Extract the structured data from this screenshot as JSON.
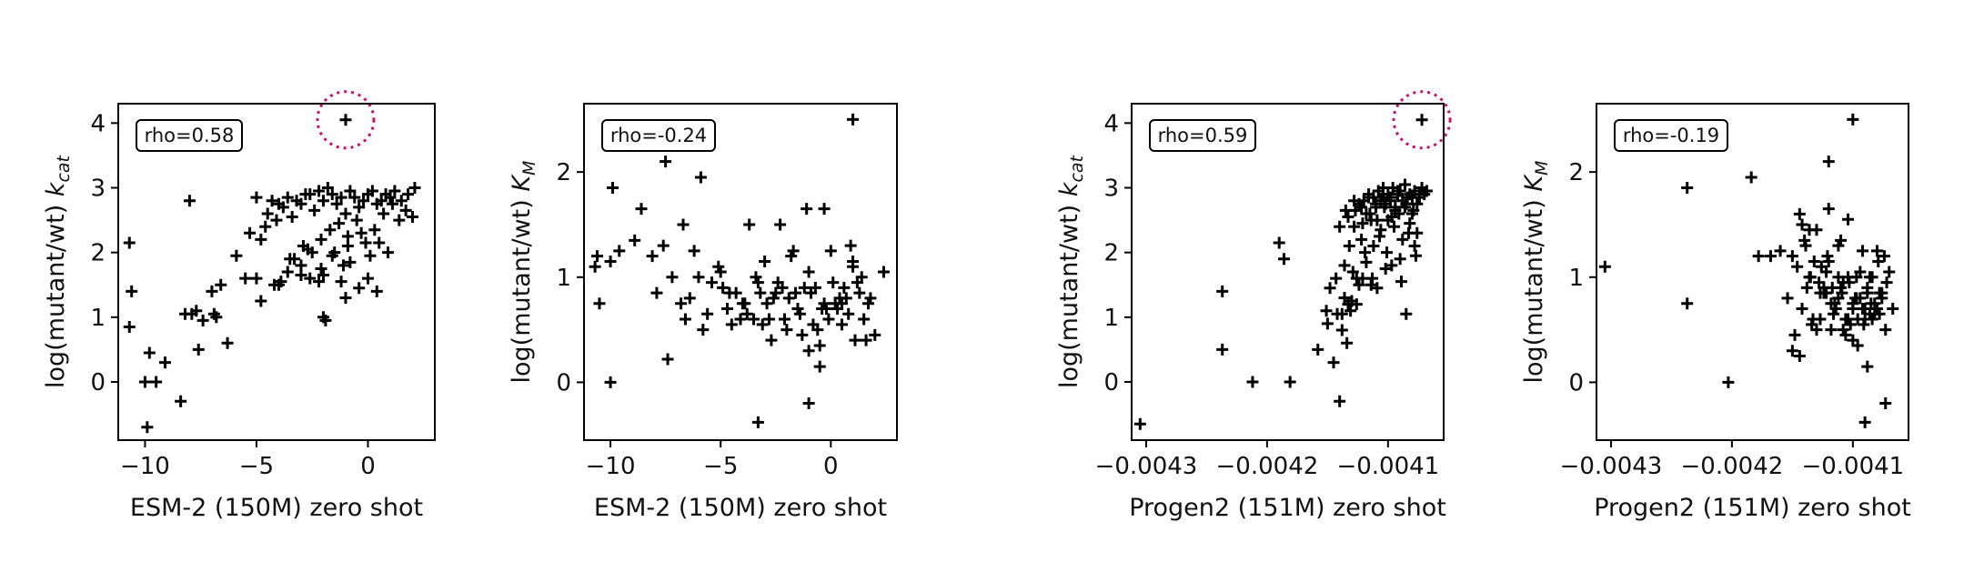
{
  "chart_data": [
    {
      "type": "scatter",
      "xlabel": "ESM-2 (150M) zero shot",
      "ylabel": "log(mutant/wt) ",
      "ylabel_sub": "cat",
      "ylabel_var": "k",
      "annotation": "rho=0.58",
      "xlim": [
        -11.2,
        3.0
      ],
      "ylim": [
        -0.9,
        4.3
      ],
      "xticks": [
        -10,
        -5,
        0
      ],
      "xtick_labels": [
        "−10",
        "−5",
        "0"
      ],
      "yticks": [
        0,
        1,
        2,
        3,
        4
      ],
      "ytick_labels": [
        "0",
        "1",
        "2",
        "3",
        "4"
      ],
      "highlight": {
        "x": -1.0,
        "y": 4.05
      },
      "marker_color": "#000000",
      "highlight_color": "#c8106e",
      "points": {
        "x": [
          -10.7,
          -10.6,
          -10.7,
          -10.0,
          -9.8,
          -9.9,
          -9.5,
          -9.1,
          -8.4,
          -8.0,
          -7.9,
          -7.7,
          -7.4,
          -7.0,
          -6.8,
          -6.6,
          -6.3,
          -5.9,
          -5.5,
          -5.3,
          -5.0,
          -4.8,
          -4.6,
          -4.5,
          -4.3,
          -4.1,
          -4.0,
          -3.8,
          -3.6,
          -3.4,
          -3.2,
          -3.0,
          -2.8,
          -2.6,
          -2.4,
          -2.2,
          -2.0,
          -1.8,
          -1.6,
          -1.4,
          -1.2,
          -1.0,
          -0.8,
          -0.6,
          -0.4,
          -0.2,
          0.0,
          0.2,
          0.4,
          0.6,
          0.8,
          1.0,
          1.2,
          1.5,
          1.8,
          2.1,
          -2.9,
          -2.5,
          -2.1,
          -1.7,
          -1.3,
          -0.9,
          -0.5,
          -0.1,
          0.3,
          0.7,
          1.1,
          1.4,
          1.7,
          2.0,
          -4.8,
          -4.2,
          -3.6,
          -3.0,
          -2.6,
          -2.0,
          -1.6,
          -1.2,
          -0.8,
          -0.4,
          -3.9,
          -3.3,
          -2.7,
          -2.1,
          -1.5,
          -0.9,
          -0.3,
          0.1,
          0.5,
          0.9,
          -5.0,
          -4.0,
          -3.0,
          -2.0,
          -1.0,
          0.0,
          -6.9,
          -7.6,
          -8.2,
          -3.5,
          -1.9,
          0.4,
          -2.2,
          -1.1
        ],
        "y": [
          2.15,
          1.4,
          0.85,
          0.0,
          0.45,
          -0.7,
          0.0,
          0.3,
          -0.3,
          2.8,
          1.05,
          1.1,
          0.95,
          1.4,
          1.0,
          1.5,
          0.6,
          1.95,
          1.6,
          2.3,
          2.85,
          2.2,
          2.4,
          2.6,
          2.8,
          2.5,
          2.75,
          2.7,
          2.85,
          2.55,
          2.8,
          2.75,
          2.9,
          2.9,
          2.65,
          2.95,
          2.8,
          3.0,
          2.9,
          2.75,
          2.85,
          2.6,
          2.95,
          2.85,
          2.7,
          2.8,
          2.9,
          2.95,
          2.75,
          2.8,
          2.9,
          2.85,
          2.95,
          2.8,
          2.9,
          3.0,
          2.1,
          2.0,
          2.2,
          2.35,
          2.45,
          2.25,
          2.5,
          2.15,
          2.35,
          2.6,
          2.75,
          2.5,
          2.65,
          2.55,
          1.25,
          1.5,
          1.7,
          1.8,
          1.6,
          1.65,
          1.95,
          1.55,
          1.85,
          1.45,
          1.55,
          1.9,
          2.05,
          1.75,
          2.0,
          2.1,
          2.3,
          1.95,
          2.15,
          2.0,
          1.6,
          1.5,
          1.65,
          1.0,
          1.3,
          1.6,
          1.05,
          0.5,
          1.05,
          1.9,
          0.95,
          1.4,
          1.55,
          1.8
        ]
      }
    },
    {
      "type": "scatter",
      "xlabel": "ESM-2 (150M) zero shot",
      "ylabel": "log(mutant/wt) ",
      "ylabel_sub": "M",
      "ylabel_var": "K",
      "annotation": "rho=-0.24",
      "xlim": [
        -11.2,
        3.0
      ],
      "ylim": [
        -0.55,
        2.65
      ],
      "xticks": [
        -10,
        -5,
        0
      ],
      "xtick_labels": [
        "−10",
        "−5",
        "0"
      ],
      "yticks": [
        0,
        1,
        2
      ],
      "ytick_labels": [
        "0",
        "1",
        "2"
      ],
      "marker_color": "#000000",
      "points": {
        "x": [
          -10.7,
          -10.6,
          -10.5,
          -10.0,
          -9.9,
          -9.6,
          -8.9,
          -8.6,
          -8.1,
          -7.9,
          -7.6,
          -7.4,
          -7.2,
          -6.8,
          -6.6,
          -6.4,
          -6.2,
          -6.0,
          -5.6,
          -5.4,
          -5.1,
          -4.9,
          -4.7,
          -4.5,
          -4.3,
          -4.1,
          -3.9,
          -3.7,
          -3.5,
          -3.3,
          -3.1,
          -2.9,
          -2.7,
          -2.5,
          -2.3,
          -2.1,
          -1.9,
          -1.7,
          -1.5,
          -1.3,
          -1.1,
          -0.9,
          -0.7,
          -0.5,
          -0.3,
          -0.1,
          0.1,
          0.3,
          0.5,
          0.7,
          0.9,
          1.1,
          1.3,
          1.5,
          1.7,
          2.0,
          2.4,
          -3.0,
          -2.6,
          -2.2,
          -1.8,
          -1.4,
          -1.0,
          -0.6,
          -0.2,
          0.2,
          0.6,
          1.0,
          1.4,
          1.8,
          -4.6,
          -4.0,
          -3.4,
          -2.8,
          -2.4,
          -2.0,
          -1.6,
          -1.2,
          -0.8,
          -0.4,
          0.0,
          0.4,
          0.8,
          1.2,
          1.6,
          -6.7,
          -5.8,
          -5.0,
          -3.8,
          -3.2,
          -1.0,
          1.0,
          -0.5,
          0.5,
          -3.3,
          -1.0,
          -5.9,
          -7.5,
          -10.0,
          -0.3
        ],
        "y": [
          1.1,
          1.2,
          0.75,
          1.15,
          1.85,
          1.25,
          1.35,
          1.65,
          1.2,
          0.85,
          1.3,
          0.22,
          1.0,
          0.75,
          0.6,
          0.8,
          1.25,
          1.0,
          0.65,
          0.95,
          1.1,
          0.9,
          0.7,
          0.55,
          0.85,
          0.6,
          0.75,
          1.5,
          0.6,
          0.95,
          0.55,
          0.75,
          0.4,
          0.85,
          1.5,
          0.6,
          0.8,
          1.25,
          0.7,
          0.45,
          1.65,
          0.85,
          0.9,
          0.35,
          0.75,
          0.6,
          0.95,
          0.7,
          0.55,
          0.8,
          1.3,
          0.4,
          0.85,
          0.6,
          0.75,
          0.45,
          1.05,
          1.15,
          0.8,
          0.9,
          1.2,
          0.65,
          1.05,
          0.5,
          0.7,
          0.75,
          0.9,
          1.15,
          1.0,
          0.8,
          0.85,
          0.75,
          1.0,
          0.6,
          0.95,
          0.5,
          0.85,
          0.9,
          0.55,
          0.7,
          1.25,
          0.8,
          0.65,
          0.95,
          0.4,
          1.5,
          0.5,
          1.05,
          0.65,
          0.85,
          0.3,
          1.1,
          0.15,
          0.75,
          -0.38,
          -0.2,
          1.95,
          2.1,
          0.0,
          1.65
        ],
        "extra": {
          "x": 1.0,
          "y": 2.5
        }
      }
    },
    {
      "type": "scatter",
      "xlabel": "Progen2 (151M) zero shot",
      "ylabel": "log(mutant/wt) ",
      "ylabel_sub": "cat",
      "ylabel_var": "k",
      "annotation": "rho=0.59",
      "xlim": [
        -0.004312,
        -0.004054
      ],
      "ylim": [
        -0.9,
        4.3
      ],
      "xticks": [
        -0.0043,
        -0.0042,
        -0.0041
      ],
      "xtick_labels": [
        "−0.0043",
        "−0.0042",
        "−0.0041"
      ],
      "yticks": [
        0,
        1,
        2,
        3,
        4
      ],
      "ytick_labels": [
        "0",
        "1",
        "2",
        "3",
        "4"
      ],
      "highlight": {
        "x": -0.004072,
        "y": 4.05
      },
      "marker_color": "#000000",
      "highlight_color": "#c8106e",
      "points": {
        "x": [
          -0.004305,
          -0.004237,
          -0.004237,
          -0.004212,
          -0.00419,
          -0.004186,
          -0.004181,
          -0.004158,
          -0.004151,
          -0.00415,
          -0.004148,
          -0.004145,
          -0.004143,
          -0.00414,
          -0.004138,
          -0.004136,
          -0.004134,
          -0.004132,
          -0.00413,
          -0.004128,
          -0.004126,
          -0.004124,
          -0.004122,
          -0.00412,
          -0.004118,
          -0.004116,
          -0.004114,
          -0.004112,
          -0.00411,
          -0.004108,
          -0.004106,
          -0.004104,
          -0.004102,
          -0.0041,
          -0.004098,
          -0.004096,
          -0.004094,
          -0.004092,
          -0.00409,
          -0.004088,
          -0.004086,
          -0.004084,
          -0.004082,
          -0.00408,
          -0.004078,
          -0.004076,
          -0.004074,
          -0.004072,
          -0.00407,
          -0.004068,
          -0.004135,
          -0.004128,
          -0.004122,
          -0.004116,
          -0.00411,
          -0.004104,
          -0.004098,
          -0.004092,
          -0.004086,
          -0.00408,
          -0.004074,
          -0.004131,
          -0.004124,
          -0.004118,
          -0.004112,
          -0.004106,
          -0.0041,
          -0.004094,
          -0.004088,
          -0.004082,
          -0.004076,
          -0.004142,
          -0.004136,
          -0.004129,
          -0.004119,
          -0.004113,
          -0.004107,
          -0.004101,
          -0.004095,
          -0.004089,
          -0.004083,
          -0.004077,
          -0.00414,
          -0.004133,
          -0.004127,
          -0.004121,
          -0.004115,
          -0.004109,
          -0.004103,
          -0.004097,
          -0.004091,
          -0.004085,
          -0.004079,
          -0.004138,
          -0.004126,
          -0.004114,
          -0.004102,
          -0.00409,
          -0.004078,
          -0.004133,
          -0.004121,
          -0.004109,
          -0.004097,
          -0.004085
        ],
        "y": [
          -0.65,
          1.4,
          0.5,
          0.0,
          2.15,
          1.9,
          0.0,
          0.5,
          1.1,
          0.9,
          1.45,
          0.3,
          1.6,
          -0.3,
          1.05,
          1.8,
          0.6,
          2.1,
          1.25,
          2.4,
          1.6,
          2.75,
          2.2,
          2.8,
          2.6,
          2.9,
          2.5,
          2.85,
          2.7,
          2.95,
          2.8,
          3.0,
          2.75,
          2.9,
          2.85,
          3.0,
          2.7,
          2.9,
          2.95,
          2.8,
          3.05,
          2.85,
          2.9,
          2.6,
          2.95,
          2.75,
          2.85,
          3.0,
          2.9,
          2.95,
          2.65,
          2.8,
          2.7,
          2.85,
          2.75,
          2.9,
          2.8,
          2.95,
          2.7,
          2.85,
          2.9,
          1.1,
          1.5,
          1.85,
          2.1,
          2.35,
          2.5,
          2.65,
          2.2,
          2.45,
          2.3,
          1.05,
          1.3,
          1.7,
          2.0,
          1.6,
          2.25,
          2.0,
          2.4,
          1.55,
          2.3,
          1.95,
          2.4,
          2.55,
          2.65,
          2.45,
          2.6,
          2.5,
          2.7,
          2.55,
          2.6,
          2.75,
          2.65,
          0.8,
          1.2,
          1.5,
          1.75,
          1.9,
          2.1,
          1.2,
          1.6,
          1.45,
          1.8,
          1.05
        ]
      }
    },
    {
      "type": "scatter",
      "xlabel": "Progen2 (151M) zero shot",
      "ylabel": "log(mutant/wt) ",
      "ylabel_sub": "M",
      "ylabel_var": "K",
      "annotation": "rho=-0.19",
      "xlim": [
        -0.004312,
        -0.004054
      ],
      "ylim": [
        -0.55,
        2.65
      ],
      "xticks": [
        -0.0043,
        -0.0042,
        -0.0041
      ],
      "xtick_labels": [
        "−0.0043",
        "−0.0042",
        "−0.0041"
      ],
      "yticks": [
        0,
        1,
        2
      ],
      "ytick_labels": [
        "0",
        "1",
        "2"
      ],
      "marker_color": "#000000",
      "points": {
        "x": [
          -0.004305,
          -0.004237,
          -0.004237,
          -0.004203,
          -0.004184,
          -0.004178,
          -0.004168,
          -0.00416,
          -0.004154,
          -0.00415,
          -0.004146,
          -0.004142,
          -0.004139,
          -0.004136,
          -0.004133,
          -0.00413,
          -0.004127,
          -0.004124,
          -0.004121,
          -0.004118,
          -0.004115,
          -0.004112,
          -0.004109,
          -0.004106,
          -0.004103,
          -0.0041,
          -0.004097,
          -0.004094,
          -0.004091,
          -0.004088,
          -0.004085,
          -0.004082,
          -0.004079,
          -0.004076,
          -0.004073,
          -0.00407,
          -0.004067,
          -0.004148,
          -0.00414,
          -0.004132,
          -0.004124,
          -0.004116,
          -0.004108,
          -0.0041,
          -0.004092,
          -0.004084,
          -0.004076,
          -0.004144,
          -0.004136,
          -0.004128,
          -0.00412,
          -0.004112,
          -0.004104,
          -0.004096,
          -0.004088,
          -0.00408,
          -0.004072,
          -0.004142,
          -0.004134,
          -0.004126,
          -0.004118,
          -0.00411,
          -0.004102,
          -0.004094,
          -0.004086,
          -0.004078,
          -0.004138,
          -0.00413,
          -0.004122,
          -0.004114,
          -0.004106,
          -0.004098,
          -0.00409,
          -0.004082,
          -0.004074,
          -0.00412,
          -0.004112,
          -0.004104,
          -0.004096,
          -0.004088,
          -0.00408,
          -0.004108,
          -0.0041,
          -0.004092,
          -0.004084,
          -0.00415,
          -0.004144,
          -0.004135,
          -0.004127,
          -0.004122,
          -0.004117,
          -0.00411,
          -0.004104,
          -0.004097,
          -0.00409,
          -0.004086,
          -0.004078,
          -0.004073
        ],
        "y": [
          1.1,
          1.85,
          0.75,
          0.0,
          1.95,
          1.2,
          1.2,
          1.25,
          0.8,
          1.2,
          1.1,
          0.7,
          1.3,
          1.0,
          0.6,
          1.45,
          0.85,
          0.9,
          1.2,
          0.5,
          0.75,
          1.0,
          0.85,
          0.6,
          0.95,
          0.7,
          0.8,
          1.05,
          0.55,
          0.9,
          0.75,
          0.65,
          1.15,
          0.85,
          0.5,
          1.05,
          0.7,
          0.45,
          1.35,
          1.15,
          0.85,
          0.65,
          0.95,
          0.75,
          1.25,
          0.6,
          0.8,
          1.6,
          1.45,
          0.95,
          1.15,
          0.8,
          1.0,
          0.6,
          0.85,
          0.7,
          0.95,
          1.5,
          0.55,
          1.1,
          0.75,
          0.9,
          0.55,
          0.8,
          1.0,
          0.65,
          0.9,
          0.5,
          1.05,
          0.7,
          0.45,
          0.8,
          0.6,
          0.75,
          1.2,
          1.65,
          1.3,
          1.55,
          0.35,
          0.15,
          1.25,
          0.5,
          0.4,
          0.7,
          1.0,
          0.3,
          0.25,
          1.0,
          0.6,
          0.85,
          0.9,
          1.35,
          0.6,
          1.0,
          0.7,
          0.65,
          0.85,
          -0.2
        ],
        "extras": [
          {
            "x": -0.0041,
            "y": 2.5
          },
          {
            "x": -0.00412,
            "y": 2.1
          },
          {
            "x": -0.00409,
            "y": -0.38
          }
        ]
      }
    }
  ]
}
